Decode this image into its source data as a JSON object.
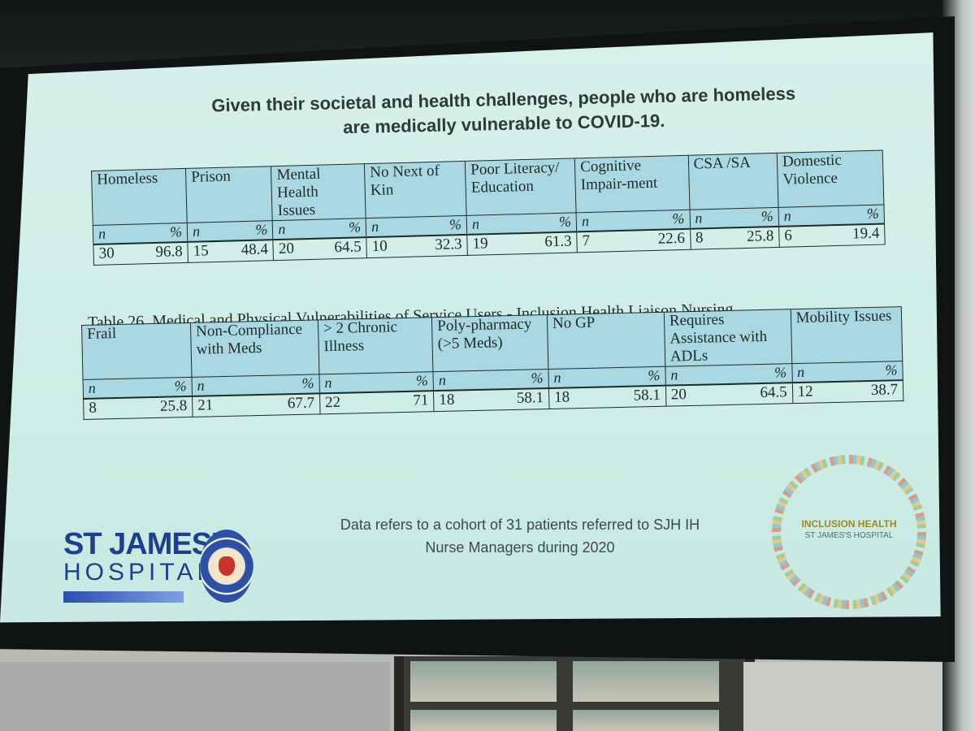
{
  "headline": {
    "line1": "Given their societal and health challenges, people who are homeless",
    "line2": "are medically vulnerable to COVID-19."
  },
  "table1": {
    "columns": [
      {
        "label": "Homeless",
        "n": "30",
        "pct": "96.8"
      },
      {
        "label": "Prison",
        "n": "15",
        "pct": "48.4"
      },
      {
        "label": "Mental Health Issues",
        "n": "20",
        "pct": "64.5"
      },
      {
        "label": "No Next of Kin",
        "n": "10",
        "pct": "32.3"
      },
      {
        "label": "Poor Literacy/ Education",
        "n": "19",
        "pct": "61.3"
      },
      {
        "label": "Cognitive Impair-ment",
        "n": "7",
        "pct": "22.6"
      },
      {
        "label": "CSA /SA",
        "n": "8",
        "pct": "25.8"
      },
      {
        "label": "Domestic Violence",
        "n": "6",
        "pct": "19.4"
      }
    ],
    "n_label": "n",
    "pct_label": "%"
  },
  "table2": {
    "caption": "Table 26. Medical and Physical Vulnerabilities of Service Users - Inclusion Health Liaison Nursing",
    "columns": [
      {
        "label": "Frail",
        "n": "8",
        "pct": "25.8"
      },
      {
        "label": "Non-Compliance with Meds",
        "n": "21",
        "pct": "67.7"
      },
      {
        "label": "> 2 Chronic Illness",
        "n": "22",
        "pct": "71"
      },
      {
        "label": "Poly-pharmacy (>5 Meds)",
        "n": "18",
        "pct": "58.1"
      },
      {
        "label": "No GP",
        "n": "18",
        "pct": "58.1"
      },
      {
        "label": "Requires Assistance with ADLs",
        "n": "20",
        "pct": "64.5"
      },
      {
        "label": "Mobility Issues",
        "n": "12",
        "pct": "38.7"
      }
    ],
    "n_label": "n",
    "pct_label": "%"
  },
  "footnote": {
    "line1": "Data refers to a cohort of 31 patients referred to SJH IH",
    "line2": "Nurse Managers during 2020"
  },
  "logo": {
    "line1": "ST JAMES'S",
    "line2": "HOSPITAL"
  },
  "ih_logo": {
    "line1": "INCLUSION HEALTH",
    "line2": "ST JAMES'S HOSPITAL"
  },
  "colors": {
    "slide_bg": "#cfeee7",
    "table_header": "#a9d8e3",
    "logo_blue": "#1e3f8f"
  }
}
